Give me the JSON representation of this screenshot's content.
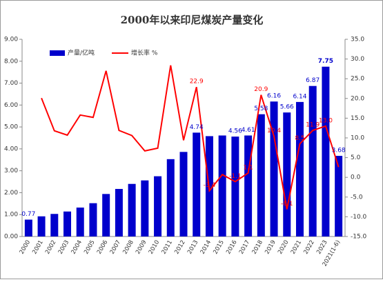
{
  "chart_data": {
    "type": "bar-line",
    "title": "2000年以来印尼煤炭产量变化",
    "categories": [
      "2000",
      "2001",
      "2002",
      "2003",
      "2004",
      "2005",
      "2006",
      "2007",
      "2008",
      "2009",
      "2010",
      "2011",
      "2012",
      "2013",
      "2014",
      "2015",
      "2016",
      "2017",
      "2018",
      "2019",
      "2020",
      "2021",
      "2022",
      "2023",
      "2021(1-6)"
    ],
    "series": [
      {
        "name": "产量/亿吨",
        "color": "#0000cc",
        "axis": "y",
        "values": [
          0.77,
          0.92,
          1.03,
          1.14,
          1.32,
          1.52,
          1.94,
          2.17,
          2.4,
          2.56,
          2.75,
          3.53,
          3.86,
          4.74,
          4.58,
          4.61,
          4.56,
          4.61,
          5.58,
          6.16,
          5.66,
          6.14,
          6.87,
          7.75,
          3.68
        ],
        "value_labels": [
          "0.77",
          null,
          null,
          null,
          null,
          null,
          null,
          null,
          null,
          null,
          null,
          null,
          null,
          "4.74",
          null,
          null,
          "4.56",
          "4.61",
          "5.58",
          "6.16",
          "5.66",
          "6.14",
          "6.87",
          "7.75",
          "3.68"
        ]
      },
      {
        "name": "增长率 %",
        "color": "#ff0000",
        "axis": "y2",
        "values": [
          null,
          20.1,
          11.8,
          10.7,
          15.8,
          15.2,
          27.0,
          11.9,
          10.6,
          6.7,
          7.4,
          28.4,
          9.4,
          22.9,
          -3.4,
          0.7,
          -1.1,
          1.1,
          20.9,
          10.4,
          -8.1,
          8.5,
          11.9,
          13.0,
          2.6
        ],
        "value_labels": [
          null,
          null,
          null,
          null,
          null,
          null,
          null,
          null,
          null,
          null,
          null,
          null,
          null,
          "22.9",
          "-3.4",
          null,
          "-1.1",
          "1.1",
          "20.9",
          "10.4",
          "-8.1",
          "8.5",
          "11.9",
          "13.0",
          null
        ]
      }
    ],
    "ylim": [
      0,
      9
    ],
    "yticks": [
      {
        "value": 0,
        "label": "0.00"
      },
      {
        "value": 1,
        "label": "1.00"
      },
      {
        "value": 2,
        "label": "2.00"
      },
      {
        "value": 3,
        "label": "3.00"
      },
      {
        "value": 4,
        "label": "4.00"
      },
      {
        "value": 5,
        "label": "5.00"
      },
      {
        "value": 6,
        "label": "6.00"
      },
      {
        "value": 7,
        "label": "7.00"
      },
      {
        "value": 8,
        "label": "8.00"
      },
      {
        "value": 9,
        "label": "9.00"
      }
    ],
    "y2lim": [
      -15,
      35
    ],
    "y2ticks": [
      {
        "value": -15,
        "label": "-15.0"
      },
      {
        "value": -10,
        "label": "-10.0"
      },
      {
        "value": -5,
        "label": "-5.0"
      },
      {
        "value": 0,
        "label": "0.0"
      },
      {
        "value": 5,
        "label": "5.0"
      },
      {
        "value": 10,
        "label": "10.0"
      },
      {
        "value": 15,
        "label": "15.0"
      },
      {
        "value": 20,
        "label": "20.0"
      },
      {
        "value": 25,
        "label": "25.0"
      },
      {
        "value": 30,
        "label": "30.0"
      },
      {
        "value": 35,
        "label": "35.0"
      }
    ],
    "legend": "top-left"
  }
}
